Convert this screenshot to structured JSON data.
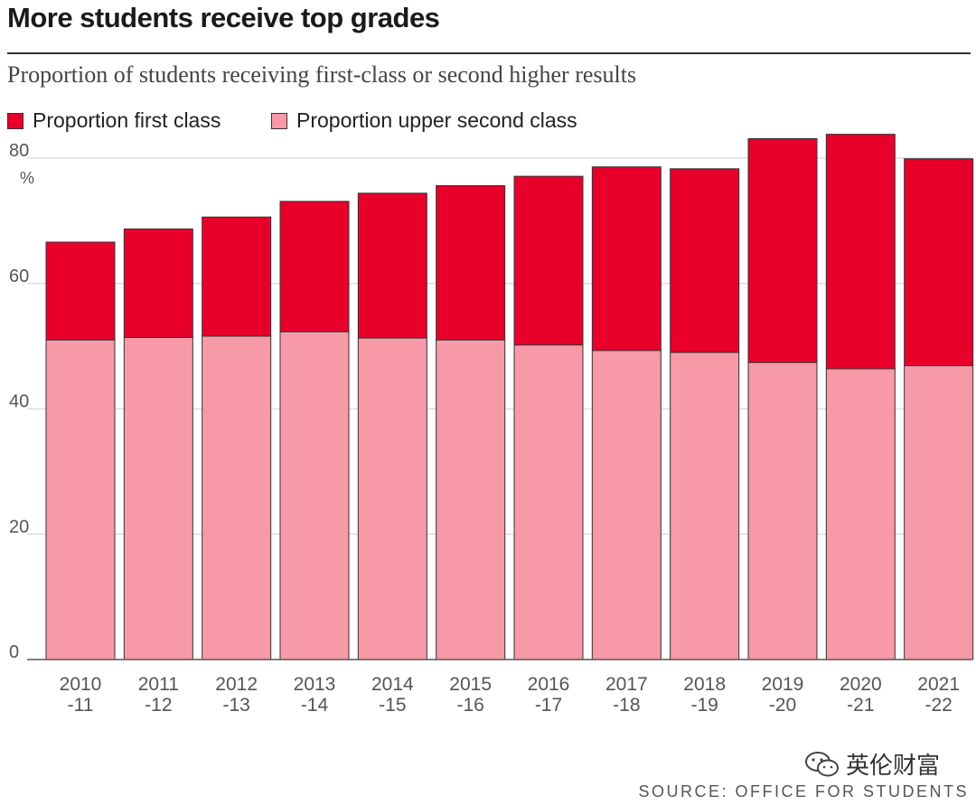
{
  "colors": {
    "first_class": "#e8002b",
    "upper_second": "#f899a8",
    "grid": "#dddddd",
    "axis_text": "#555555"
  },
  "watermark": {
    "text": "英伦财富",
    "icon": "wechat-icon"
  },
  "source": "SOURCE: OFFICE FOR STUDENTS",
  "chart_data": {
    "type": "bar",
    "stacked": true,
    "title": "More students receive top grades",
    "subtitle": "Proportion of students receiving first-class or second higher results",
    "y_unit": "%",
    "ylim": [
      0,
      80
    ],
    "yticks": [
      0,
      20,
      40,
      60,
      80
    ],
    "grid": true,
    "legend_position": "top-left",
    "categories": [
      "2010-11",
      "2011-12",
      "2012-13",
      "2013-14",
      "2014-15",
      "2015-16",
      "2016-17",
      "2017-18",
      "2018-19",
      "2019-20",
      "2020-21",
      "2021-22"
    ],
    "category_labels": [
      [
        "2010",
        "-11"
      ],
      [
        "2011",
        "-12"
      ],
      [
        "2012",
        "-13"
      ],
      [
        "2013",
        "-14"
      ],
      [
        "2014",
        "-15"
      ],
      [
        "2015",
        "-16"
      ],
      [
        "2016",
        "-17"
      ],
      [
        "2017",
        "-18"
      ],
      [
        "2018",
        "-19"
      ],
      [
        "2019",
        "-20"
      ],
      [
        "2020",
        "-21"
      ],
      [
        "2021",
        "-22"
      ]
    ],
    "series": [
      {
        "name": "Proportion upper second class",
        "values": [
          51.0,
          51.4,
          51.6,
          52.3,
          51.3,
          51.0,
          50.2,
          49.3,
          49.0,
          47.4,
          46.4,
          46.9
        ]
      },
      {
        "name": "Proportion first class",
        "values": [
          15.6,
          17.3,
          19.0,
          20.8,
          23.1,
          24.6,
          26.9,
          29.3,
          29.3,
          35.7,
          37.4,
          33.0
        ]
      }
    ]
  }
}
